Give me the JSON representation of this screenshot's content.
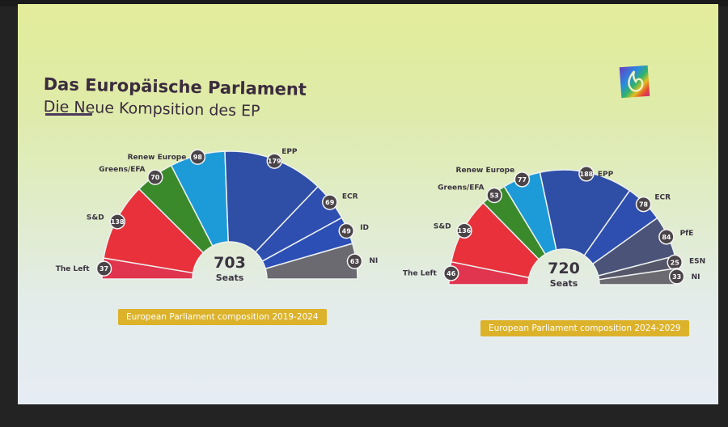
{
  "slide": {
    "title": "Das Europäische Parlament",
    "subtitle": "Die Neue Kompsition des EP",
    "logo_icon": "rainbow-flame-logo"
  },
  "chart_data": [
    {
      "type": "pie",
      "variant": "parliament-semicircle",
      "title": "European Parliament composition 2019-2024",
      "total": 703,
      "total_label": "Seats",
      "categories": [
        "The Left",
        "S&D",
        "Greens/EFA",
        "Renew Europe",
        "EPP",
        "ECR",
        "ID",
        "NI"
      ],
      "values": [
        37,
        138,
        70,
        98,
        179,
        69,
        49,
        63
      ],
      "colors": [
        "#e0344f",
        "#e8313a",
        "#3a8a2c",
        "#1d9bd8",
        "#2f4ea6",
        "#2f4fb0",
        "#2c4fb6",
        "#6b6a70"
      ]
    },
    {
      "type": "pie",
      "variant": "parliament-semicircle",
      "title": "European Parliament composition 2024-2029",
      "total": 720,
      "total_label": "Seats",
      "categories": [
        "The Left",
        "S&D",
        "Greens/EFA",
        "Renew Europe",
        "EPP",
        "ECR",
        "PfE",
        "ESN",
        "NI"
      ],
      "values": [
        46,
        136,
        53,
        77,
        188,
        78,
        84,
        25,
        33
      ],
      "colors": [
        "#e0344f",
        "#e8313a",
        "#3a8a2c",
        "#1d9bd8",
        "#2f4ea6",
        "#2f4fb0",
        "#4b5478",
        "#56566a",
        "#6b6a70"
      ]
    }
  ]
}
